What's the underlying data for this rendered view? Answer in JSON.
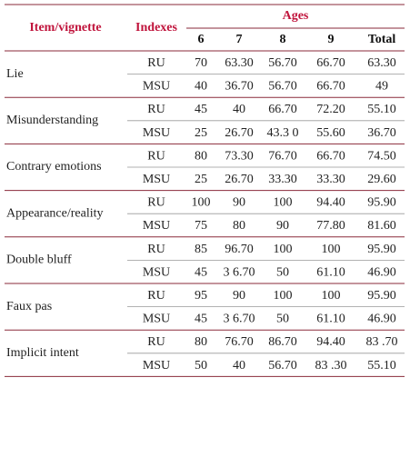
{
  "header": {
    "item": "Item/vignette",
    "indexes": "Indexes",
    "ages": "Ages",
    "columns": [
      "6",
      "7",
      "8",
      "9",
      "Total"
    ]
  },
  "groups": [
    {
      "item": "Lie",
      "rows": [
        {
          "index": "RU",
          "values": [
            "70",
            "63.30",
            "56.70",
            "66.70",
            "63.30"
          ]
        },
        {
          "index": "MSU",
          "values": [
            "40",
            "36.70",
            "56.70",
            "66.70",
            "49"
          ]
        }
      ]
    },
    {
      "item": "Misunderstanding",
      "rows": [
        {
          "index": "RU",
          "values": [
            "45",
            "40",
            "66.70",
            "72.20",
            "55.10"
          ]
        },
        {
          "index": "MSU",
          "values": [
            "25",
            "26.70",
            "43.3 0",
            "55.60",
            "36.70"
          ]
        }
      ]
    },
    {
      "item": "Contrary emotions",
      "rows": [
        {
          "index": "RU",
          "values": [
            "80",
            "73.30",
            "76.70",
            "66.70",
            "74.50"
          ]
        },
        {
          "index": "MSU",
          "values": [
            "25",
            "26.70",
            "33.30",
            "33.30",
            "29.60"
          ]
        }
      ]
    },
    {
      "item": "Appearance/reality",
      "rows": [
        {
          "index": "RU",
          "values": [
            "100",
            "90",
            "100",
            "94.40",
            "95.90"
          ]
        },
        {
          "index": "MSU",
          "values": [
            "75",
            "80",
            "90",
            "77.80",
            "81.60"
          ]
        }
      ]
    },
    {
      "item": "Double bluff",
      "rows": [
        {
          "index": "RU",
          "values": [
            "85",
            "96.70",
            "100",
            "100",
            "95.90"
          ]
        },
        {
          "index": "MSU",
          "values": [
            "45",
            "3 6.70",
            "50",
            "61.10",
            "46.90"
          ]
        }
      ]
    },
    {
      "item": "Faux pas",
      "rows": [
        {
          "index": "RU",
          "values": [
            "95",
            "90",
            "100",
            "100",
            "95.90"
          ]
        },
        {
          "index": "MSU",
          "values": [
            "45",
            "3 6.70",
            "50",
            "61.10",
            "46.90"
          ]
        }
      ]
    },
    {
      "item": "Implicit intent",
      "rows": [
        {
          "index": "RU",
          "values": [
            "80",
            "76.70",
            "86.70",
            "94.40",
            "83 .70"
          ]
        },
        {
          "index": "MSU",
          "values": [
            "50",
            "40",
            "56.70",
            "83 .30",
            "55.10"
          ]
        }
      ]
    }
  ]
}
